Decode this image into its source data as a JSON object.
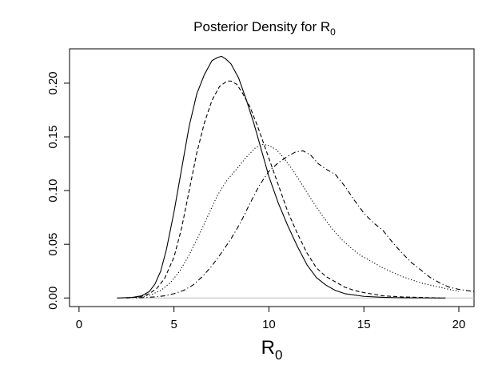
{
  "chart_data": {
    "type": "line",
    "title": "Posterior Density for R",
    "title_subscript": "0",
    "xlabel": "R",
    "xlabel_subscript": "0",
    "ylabel": "",
    "xlim": [
      -0.5,
      20.8
    ],
    "ylim": [
      -0.008,
      0.232
    ],
    "x_ticks": [
      "0",
      "5",
      "10",
      "15",
      "20"
    ],
    "y_ticks": [
      "0.00",
      "0.05",
      "0.10",
      "0.15",
      "0.20"
    ],
    "grid": false,
    "legend": false,
    "baseline": 0,
    "series": [
      {
        "line_style": "solid",
        "x": [
          2.0,
          2.8,
          3.3,
          3.7,
          4.0,
          4.3,
          4.6,
          5.0,
          5.4,
          5.8,
          6.2,
          6.6,
          7.0,
          7.3,
          7.5,
          7.7,
          8.0,
          8.4,
          8.8,
          9.2,
          9.6,
          10.0,
          10.5,
          11.0,
          11.5,
          12.0,
          12.5,
          13.0,
          13.5,
          14.0,
          15.0,
          16.0,
          17.0,
          18.0,
          19.3
        ],
        "y": [
          0.0,
          0.0005,
          0.002,
          0.006,
          0.013,
          0.025,
          0.045,
          0.08,
          0.12,
          0.16,
          0.19,
          0.208,
          0.221,
          0.224,
          0.225,
          0.223,
          0.218,
          0.205,
          0.185,
          0.163,
          0.138,
          0.113,
          0.088,
          0.067,
          0.048,
          0.031,
          0.019,
          0.012,
          0.007,
          0.004,
          0.0015,
          0.0006,
          0.0002,
          0.0001,
          0.0
        ]
      },
      {
        "line_style": "dashed",
        "x": [
          2.5,
          3.2,
          3.7,
          4.1,
          4.5,
          5.0,
          5.4,
          5.8,
          6.2,
          6.6,
          7.0,
          7.4,
          7.8,
          8.0,
          8.3,
          8.6,
          9.0,
          9.4,
          9.8,
          10.2,
          10.6,
          11.0,
          11.5,
          12.0,
          12.5,
          13.0,
          13.5,
          14.0,
          14.5,
          15.0,
          16.0,
          17.0,
          18.0,
          19.0
        ],
        "y": [
          0.0,
          0.001,
          0.004,
          0.009,
          0.018,
          0.038,
          0.065,
          0.1,
          0.135,
          0.163,
          0.184,
          0.197,
          0.202,
          0.202,
          0.199,
          0.191,
          0.178,
          0.16,
          0.14,
          0.12,
          0.1,
          0.08,
          0.06,
          0.042,
          0.028,
          0.02,
          0.015,
          0.01,
          0.007,
          0.005,
          0.002,
          0.001,
          0.0005,
          0.0
        ]
      },
      {
        "line_style": "dotted",
        "x": [
          2.5,
          3.3,
          3.8,
          4.3,
          4.8,
          5.3,
          5.8,
          6.3,
          6.8,
          7.3,
          7.8,
          8.3,
          8.8,
          9.3,
          9.7,
          10.0,
          10.4,
          10.8,
          11.3,
          11.8,
          12.3,
          12.8,
          13.3,
          13.8,
          14.3,
          14.8,
          15.5,
          16.0,
          16.5,
          17.0,
          17.5,
          18.0,
          19.0,
          20.0
        ],
        "y": [
          0.0,
          0.001,
          0.003,
          0.007,
          0.014,
          0.025,
          0.04,
          0.058,
          0.077,
          0.096,
          0.11,
          0.12,
          0.131,
          0.14,
          0.143,
          0.142,
          0.138,
          0.13,
          0.118,
          0.104,
          0.09,
          0.077,
          0.065,
          0.055,
          0.047,
          0.04,
          0.033,
          0.028,
          0.024,
          0.02,
          0.017,
          0.014,
          0.01,
          0.006
        ]
      },
      {
        "line_style": "dotdash",
        "x": [
          3.0,
          4.0,
          4.5,
          5.0,
          5.5,
          6.0,
          6.5,
          7.0,
          7.5,
          8.0,
          8.5,
          9.0,
          9.5,
          10.0,
          10.5,
          11.0,
          11.4,
          11.8,
          12.2,
          12.6,
          13.0,
          13.5,
          14.0,
          14.5,
          15.0,
          15.5,
          16.0,
          16.5,
          17.0,
          17.5,
          18.0,
          18.5,
          19.0,
          19.5,
          20.0,
          20.8
        ],
        "y": [
          0.0,
          0.001,
          0.002,
          0.004,
          0.007,
          0.012,
          0.02,
          0.03,
          0.042,
          0.055,
          0.07,
          0.088,
          0.105,
          0.118,
          0.126,
          0.132,
          0.136,
          0.137,
          0.133,
          0.125,
          0.12,
          0.115,
          0.104,
          0.091,
          0.079,
          0.07,
          0.063,
          0.052,
          0.042,
          0.033,
          0.026,
          0.019,
          0.014,
          0.01,
          0.008,
          0.006
        ]
      }
    ]
  }
}
